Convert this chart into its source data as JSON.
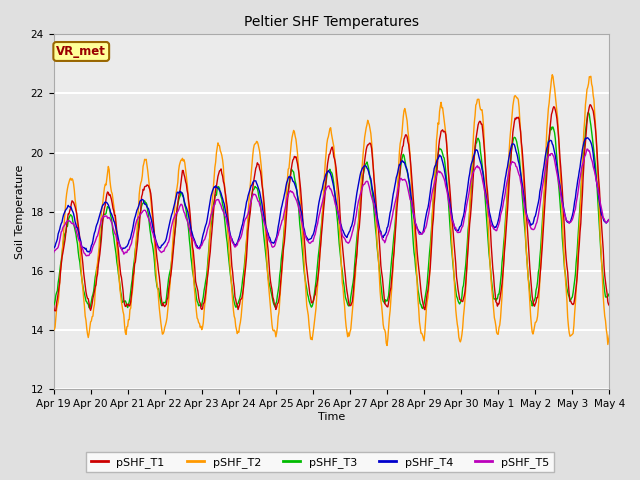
{
  "title": "Peltier SHF Temperatures",
  "xlabel": "Time",
  "ylabel": "Soil Temperature",
  "ylim": [
    12,
    24
  ],
  "yticks": [
    12,
    14,
    16,
    18,
    20,
    22,
    24
  ],
  "series_colors": {
    "pSHF_T1": "#cc0000",
    "pSHF_T2": "#ff9900",
    "pSHF_T3": "#00bb00",
    "pSHF_T4": "#0000cc",
    "pSHF_T5": "#bb00bb"
  },
  "annotation_label": "VR_met",
  "annotation_color": "#990000",
  "annotation_bg": "#ffff99",
  "annotation_border": "#996600",
  "background_color": "#e0e0e0",
  "plot_bg_color": "#ebebeb",
  "grid_color": "#ffffff",
  "x_tick_labels": [
    "Apr 19",
    "Apr 20",
    "Apr 21",
    "Apr 22",
    "Apr 23",
    "Apr 24",
    "Apr 25",
    "Apr 26",
    "Apr 27",
    "Apr 28",
    "Apr 29",
    "Apr 30",
    "May 1",
    "May 2",
    "May 3",
    "May 4"
  ],
  "base_temp": 16.5,
  "trend_per_day": 0.12,
  "n_days": 15,
  "seed": 17
}
